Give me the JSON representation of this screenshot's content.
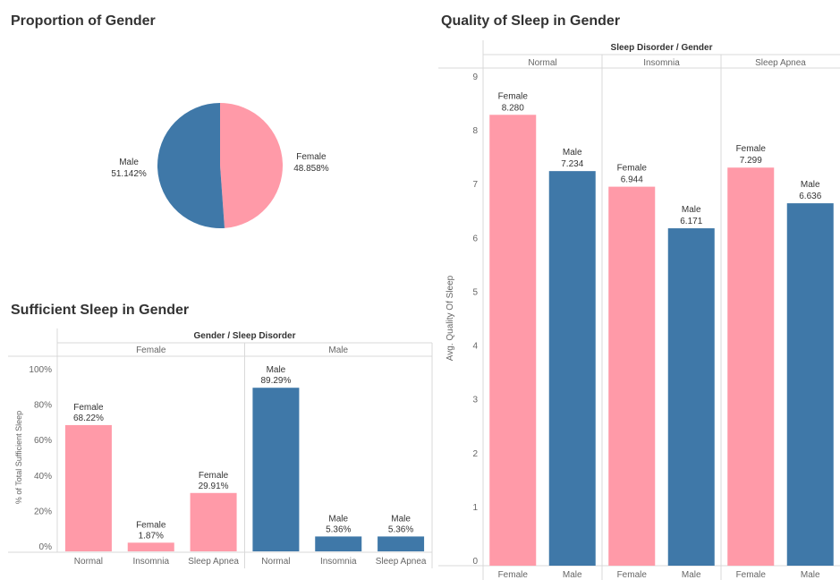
{
  "titles": {
    "pie": "Proportion of Gender",
    "sufficient": "Sufficient Sleep in Gender",
    "quality": "Quality of Sleep in Gender"
  },
  "colors": {
    "female": "#ff9aa8",
    "male": "#3f78a8",
    "grid": "#d9d9d9"
  },
  "chart_data": [
    {
      "type": "pie",
      "title": "Proportion of Gender",
      "slices": [
        {
          "label": "Female",
          "value": 48.858,
          "text": "48.858%"
        },
        {
          "label": "Male",
          "value": 51.142,
          "text": "51.142%"
        }
      ]
    },
    {
      "type": "bar",
      "title": "Sufficient Sleep in Gender",
      "header": "Gender / Sleep Disorder",
      "groups": [
        "Female",
        "Male"
      ],
      "categories": [
        "Normal",
        "Insomnia",
        "Sleep Apnea"
      ],
      "ylabel": "% of Total Sufficient Sleep",
      "ylim": [
        0,
        100
      ],
      "yticks": [
        "0%",
        "20%",
        "40%",
        "60%",
        "80%",
        "100%"
      ],
      "series": [
        {
          "name": "Female",
          "values": [
            68.22,
            1.87,
            29.91
          ],
          "labels": [
            "68.22%",
            "1.87%",
            "29.91%"
          ]
        },
        {
          "name": "Male",
          "values": [
            89.29,
            5.36,
            5.36
          ],
          "labels": [
            "89.29%",
            "5.36%",
            "5.36%"
          ]
        }
      ]
    },
    {
      "type": "bar",
      "title": "Quality of Sleep in Gender",
      "header": "Sleep Disorder / Gender",
      "groups": [
        "Normal",
        "Insomnia",
        "Sleep Apnea"
      ],
      "categories": [
        "Female",
        "Male"
      ],
      "ylabel": "Avg. Quality Of Sleep",
      "ylim": [
        0,
        9
      ],
      "yticks": [
        "0",
        "1",
        "2",
        "3",
        "4",
        "5",
        "6",
        "7",
        "8",
        "9"
      ],
      "values": [
        [
          8.28,
          7.234
        ],
        [
          6.944,
          6.171
        ],
        [
          7.299,
          6.636
        ]
      ],
      "labels": [
        [
          "8.280",
          "7.234"
        ],
        [
          "6.944",
          "6.171"
        ],
        [
          "7.299",
          "6.636"
        ]
      ]
    }
  ]
}
